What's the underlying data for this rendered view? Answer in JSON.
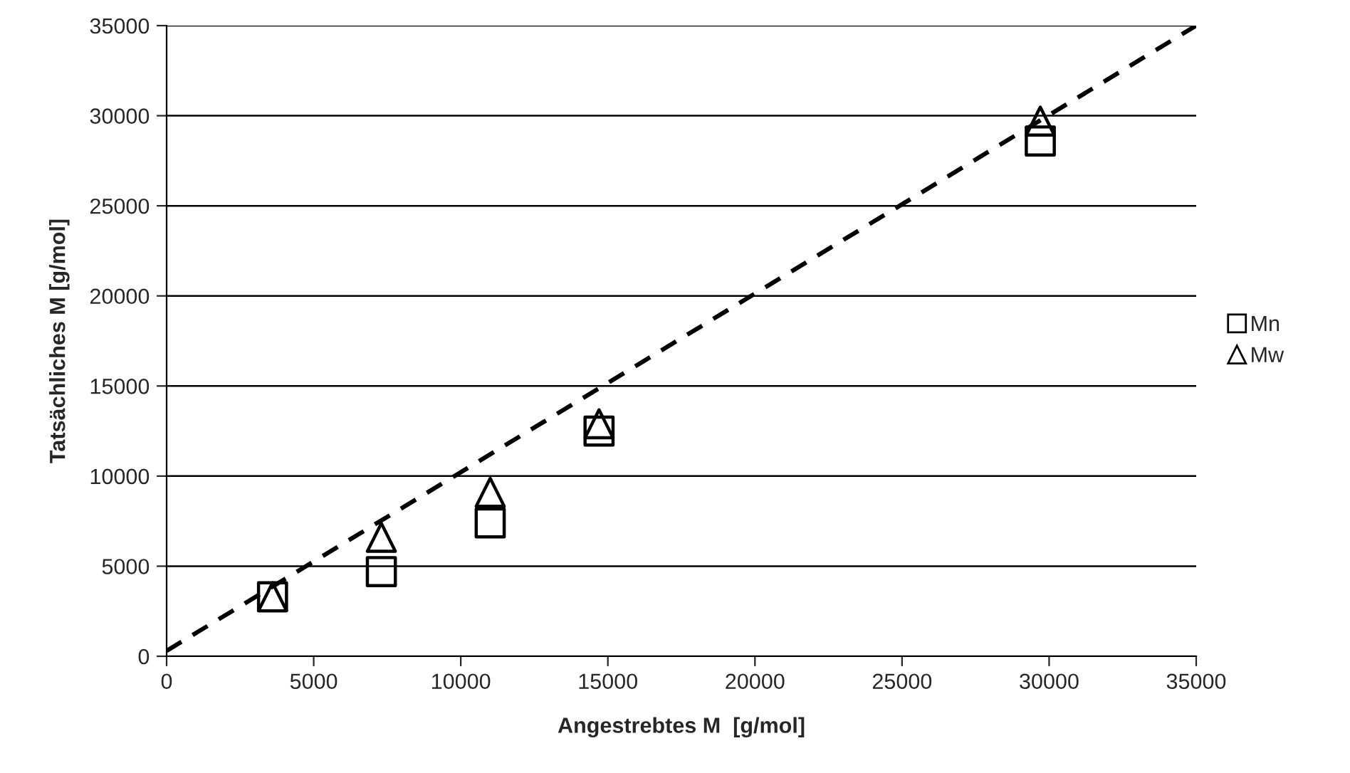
{
  "chart_data": {
    "type": "scatter",
    "xlabel": "Angestrebtes M  [g/mol]",
    "ylabel": "Tatsächliches M [g/mol]",
    "xlim": [
      0,
      35000
    ],
    "ylim": [
      0,
      35000
    ],
    "xticks": [
      0,
      5000,
      10000,
      15000,
      20000,
      25000,
      30000,
      35000
    ],
    "yticks": [
      0,
      5000,
      10000,
      15000,
      20000,
      25000,
      30000,
      35000
    ],
    "grid": "y",
    "legend": "right",
    "series": [
      {
        "name": "Mn",
        "color": "#000000",
        "marker": "square",
        "x": [
          3600,
          7300,
          11000,
          14700,
          29700
        ],
        "values": [
          3300,
          4700,
          7400,
          12500,
          28600
        ]
      },
      {
        "name": "Mw",
        "color": "#000000",
        "marker": "triangle",
        "x": [
          3600,
          7300,
          11000,
          14700,
          29700
        ],
        "values": [
          3300,
          6600,
          9100,
          12900,
          29700
        ]
      },
      {
        "type": "line",
        "color": "#000000",
        "line_style": "dashed",
        "marker": "none",
        "x": [
          0,
          35000
        ],
        "values": [
          300,
          35000
        ]
      }
    ]
  }
}
